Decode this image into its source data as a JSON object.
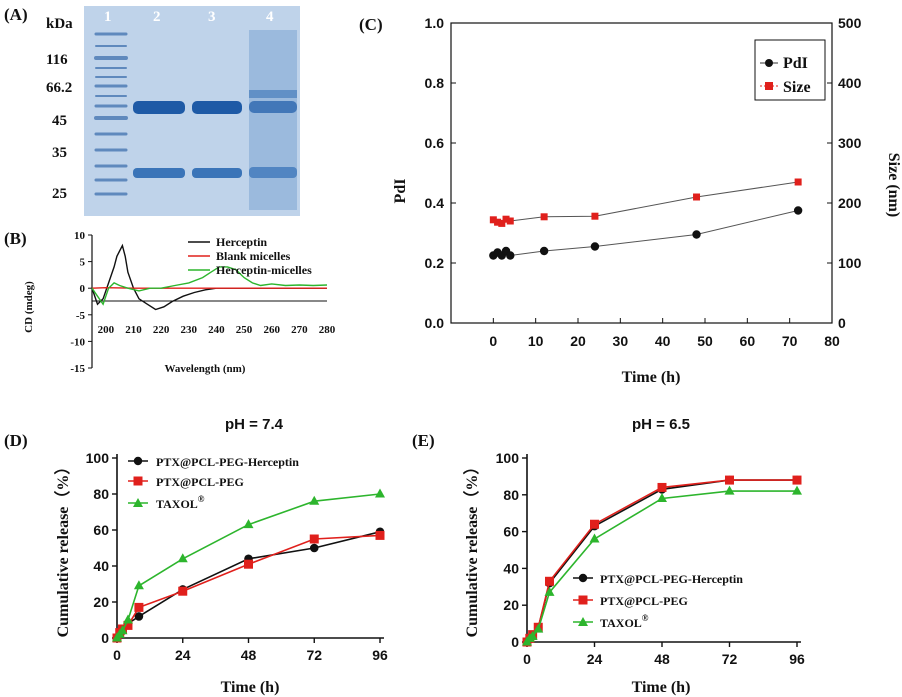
{
  "chart_data": [
    {
      "panel": "(A)",
      "type": "gel",
      "unit_label": "kDa",
      "lane_labels": [
        "1",
        "2",
        "3",
        "4"
      ],
      "marker_labels": [
        "116",
        "66.2",
        "45",
        "35",
        "25"
      ]
    },
    {
      "panel": "(B)",
      "type": "line",
      "title": "",
      "xlabel": "Wavelength (nm)",
      "ylabel": "CD (mdeg)",
      "xlim": [
        195,
        280
      ],
      "ylim": [
        -15,
        10
      ],
      "x_ticks": [
        "200",
        "210",
        "220",
        "230",
        "240",
        "250",
        "260",
        "270",
        "280"
      ],
      "y_ticks": [
        "10",
        "5",
        "0",
        "-5",
        "-10",
        "-15"
      ],
      "series": [
        {
          "name": "Herceptin",
          "color": "#111111",
          "x": [
            195,
            197,
            199,
            201,
            203,
            204,
            205,
            206,
            207,
            208,
            210,
            212,
            215,
            218,
            221,
            224,
            228,
            232,
            236,
            240,
            250,
            260,
            270,
            280
          ],
          "y": [
            0,
            -3,
            -2,
            1,
            4,
            6,
            7,
            8,
            6,
            3,
            0,
            -2,
            -3,
            -4,
            -3.5,
            -2.5,
            -1.5,
            -0.8,
            -0.3,
            0,
            0,
            0,
            0,
            0
          ]
        },
        {
          "name": "Blank micelles",
          "color": "#e0201c",
          "x": [
            195,
            200,
            210,
            220,
            230,
            240,
            250,
            260,
            270,
            280
          ],
          "y": [
            0,
            0.1,
            0,
            0,
            0,
            0,
            0,
            0,
            0,
            0
          ]
        },
        {
          "name": "Herceptin-micelles",
          "color": "#2db52d",
          "x": [
            195,
            197,
            199,
            201,
            203,
            205,
            208,
            212,
            216,
            220,
            225,
            230,
            235,
            238,
            241,
            244,
            247,
            250,
            253,
            256,
            260,
            265,
            270,
            275,
            280
          ],
          "y": [
            0,
            -1.5,
            -3,
            0,
            1,
            0.5,
            0,
            -0.5,
            0,
            0,
            0.5,
            1,
            2,
            3,
            4,
            4,
            3.5,
            2,
            1,
            0.5,
            0.8,
            0.5,
            0.6,
            0.5,
            0.6
          ]
        }
      ]
    },
    {
      "panel": "(C)",
      "type": "scatter",
      "title": "",
      "xlabel": "Time (h)",
      "ylabel": "PdI",
      "y2label": "Size (nm)",
      "xlim": [
        -10,
        80
      ],
      "ylim": [
        0.0,
        1.0
      ],
      "y2lim": [
        0,
        500
      ],
      "x_ticks": [
        "0",
        "10",
        "20",
        "30",
        "40",
        "50",
        "60",
        "70",
        "80"
      ],
      "y_ticks": [
        "0.0",
        "0.2",
        "0.4",
        "0.6",
        "0.8",
        "1.0"
      ],
      "y2_ticks": [
        "0",
        "100",
        "200",
        "300",
        "400",
        "500"
      ],
      "legend_position": "top-right",
      "series": [
        {
          "name": "PdI",
          "color": "#111111",
          "axis": "left",
          "x": [
            0,
            1,
            2,
            3,
            4,
            12,
            24,
            48,
            72
          ],
          "y": [
            0.225,
            0.235,
            0.225,
            0.24,
            0.225,
            0.24,
            0.255,
            0.295,
            0.375
          ]
        },
        {
          "name": "Size",
          "color": "#e0201c",
          "axis": "right",
          "x": [
            0,
            1,
            2,
            3,
            4,
            12,
            24,
            48,
            72
          ],
          "y": [
            172,
            168,
            166,
            173,
            170,
            177,
            178,
            210,
            235
          ]
        }
      ]
    },
    {
      "panel": "(D)",
      "type": "line",
      "title": "pH = 7.4",
      "xlabel": "Time (h)",
      "ylabel": "Cumulative release（%）",
      "xlim": [
        0,
        96
      ],
      "ylim": [
        0,
        100
      ],
      "x_ticks": [
        "0",
        "24",
        "48",
        "72",
        "96"
      ],
      "y_ticks": [
        "0",
        "20",
        "40",
        "60",
        "80",
        "100"
      ],
      "legend_position": "top-left",
      "series": [
        {
          "name": "PTX@PCL-PEG-Herceptin",
          "color": "#111111",
          "marker": "circle",
          "x": [
            0,
            1,
            2,
            4,
            8,
            24,
            48,
            72,
            96
          ],
          "y": [
            0,
            2,
            4,
            8,
            12,
            27,
            44,
            50,
            59
          ]
        },
        {
          "name": "PTX@PCL-PEG",
          "color": "#e0201c",
          "marker": "square",
          "x": [
            0,
            1,
            2,
            4,
            8,
            24,
            48,
            72,
            96
          ],
          "y": [
            0,
            3,
            5,
            7,
            17,
            26,
            41,
            55,
            57
          ]
        },
        {
          "name": "TAXOL",
          "sup": "®",
          "color": "#2db52d",
          "marker": "triangle",
          "x": [
            0,
            1,
            2,
            4,
            8,
            24,
            48,
            72,
            96
          ],
          "y": [
            0,
            2,
            4,
            10,
            29,
            44,
            63,
            76,
            80
          ]
        }
      ]
    },
    {
      "panel": "(E)",
      "type": "line",
      "title": "pH = 6.5",
      "xlabel": "Time (h)",
      "ylabel": "Cumulative release（%）",
      "xlim": [
        0,
        96
      ],
      "ylim": [
        0,
        100
      ],
      "x_ticks": [
        "0",
        "24",
        "48",
        "72",
        "96"
      ],
      "y_ticks": [
        "0",
        "20",
        "40",
        "60",
        "80",
        "100"
      ],
      "legend_position": "bottom-right",
      "series": [
        {
          "name": "PTX@PCL-PEG-Herceptin",
          "color": "#111111",
          "marker": "circle",
          "x": [
            0,
            1,
            2,
            4,
            8,
            24,
            48,
            72,
            96
          ],
          "y": [
            0,
            2,
            4,
            8,
            32,
            63,
            83,
            88,
            88
          ]
        },
        {
          "name": "PTX@PCL-PEG",
          "color": "#e0201c",
          "marker": "square",
          "x": [
            0,
            1,
            2,
            4,
            8,
            24,
            48,
            72,
            96
          ],
          "y": [
            0,
            2,
            4,
            8,
            33,
            64,
            84,
            88,
            88
          ]
        },
        {
          "name": "TAXOL",
          "sup": "®",
          "color": "#2db52d",
          "marker": "triangle",
          "x": [
            0,
            1,
            2,
            4,
            8,
            24,
            48,
            72,
            96
          ],
          "y": [
            0,
            2,
            3,
            7,
            27,
            56,
            78,
            82,
            82
          ]
        }
      ]
    }
  ]
}
